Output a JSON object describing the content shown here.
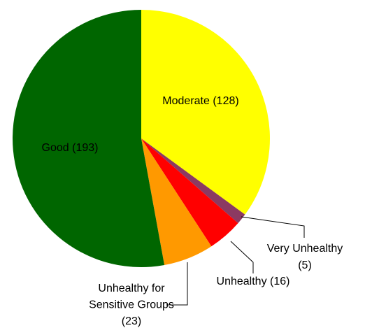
{
  "chart_data": {
    "type": "pie",
    "values": [
      128,
      5,
      16,
      23,
      193
    ],
    "value_labels": [
      "Moderate (128)",
      "Very Unhealthy\n(5)",
      "Unhealthy (16)",
      "Unhealthy for\nSensitive Groups\n(23)",
      "Good (193)"
    ],
    "colors": [
      "#ffff00",
      "#8b3a62",
      "#ff0000",
      "#ff9900",
      "#006600"
    ],
    "start_angle": 0,
    "direction": "clockwise"
  }
}
